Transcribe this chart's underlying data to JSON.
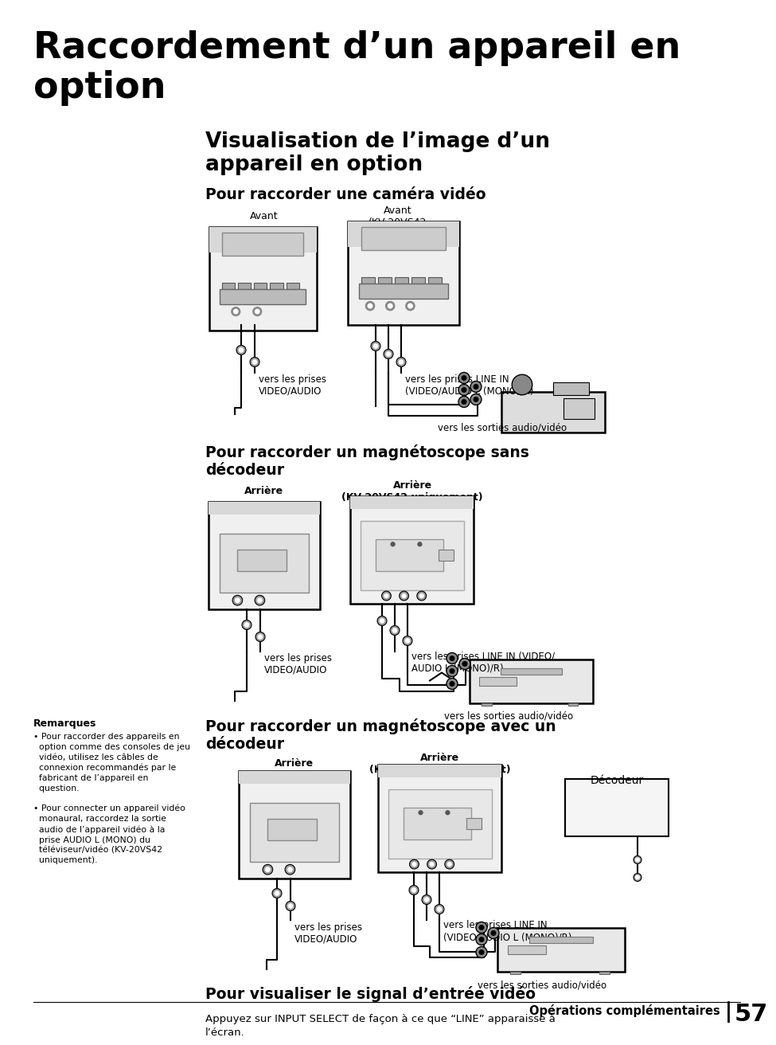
{
  "bg_color": "#ffffff",
  "title_line1": "Raccordement d’un appareil en",
  "title_line2": "option",
  "subtitle": "Visualisation de l’image d’un\nappareil en option",
  "section1_title": "Pour raccorder une caméra vidéo",
  "section2_title": "Pour raccorder un magnétoscope sans\ndécodeur",
  "section3_title": "Pour raccorder un magnétoscope avec un\ndécodeur",
  "section4_title": "Pour visualiser le signal d’entrée vidéo",
  "section4_body": "Appuyez sur INPUT SELECT de façon à ce que “LINE” apparaisse à\nl’écran.",
  "label_avant1": "Avant",
  "label_avant2": "Avant\n(KV-20VS42\nuniquement)",
  "label_arriere1": "Arrière",
  "label_arriere2": "Arrière\n(KV-20VS42 uniquement)",
  "label_arriere3": "Arrière",
  "label_arriere4": "Arrière\n(KV-20VS42 uniquement)",
  "label_va1": "vers les prises\nVIDEO/AUDIO",
  "label_va2": "vers les prises\nVIDEO/AUDIO",
  "label_va3": "vers les prises\nVIDEO/AUDIO",
  "label_li1": "vers les prises LINE IN\n(VIDEO/AUDIO L (MONO)/R)",
  "label_li2": "vers les prises LINE IN (VIDEO/\nAUDIO L (MONO)/R)",
  "label_li3": "vers les prises LINE IN\n(VIDEO/AUDIO L (MONO)/R)",
  "label_sorties1": "vers les sorties audio/vidéo",
  "label_sorties2": "vers les sorties audio/vidéo",
  "label_sorties3": "vers les sorties audio/vidéo",
  "label_decodeur": "Décodeur",
  "footer_ops": "Opérations complémentaires",
  "footer_pg": "57",
  "remarques_title": "Remarques",
  "rem1": "• Pour raccorder des appareils en\n  option comme des consoles de jeu\n  vidéo, utilisez les câbles de\n  connexion recommandés par le\n  fabricant de l’appareil en\n  question.",
  "rem2": "• Pour connecter un appareil vidéo\n  monaural, raccordez la sortie\n  audio de l’appareil vidéo à la\n  prise AUDIO L (MONO) du\n  téléviseur/vidéo (KV-20VS42\n  uniquement)."
}
